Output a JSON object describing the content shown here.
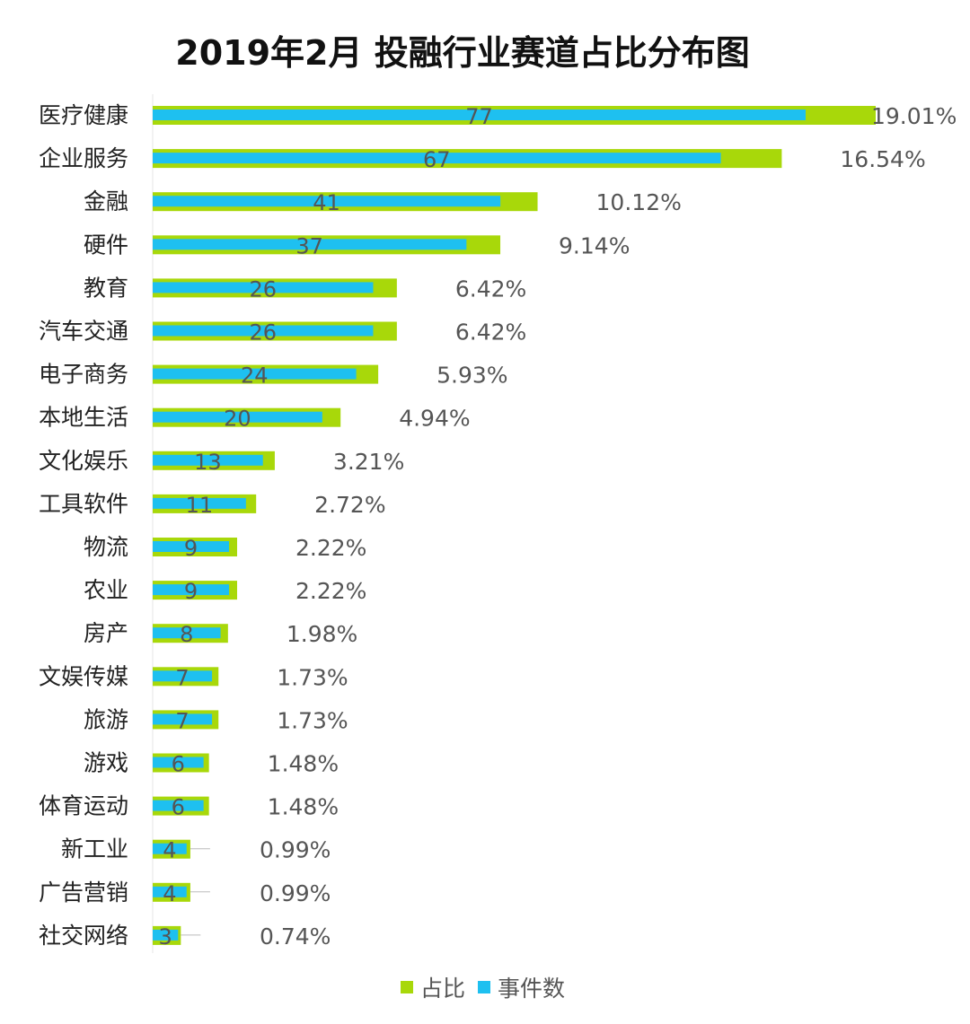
{
  "chart_data": {
    "type": "bar",
    "orientation": "horizontal",
    "title": "2019年2月 投融行业赛道占比分布图",
    "categories": [
      "医疗健康",
      "企业服务",
      "金融",
      "硬件",
      "教育",
      "汽车交通",
      "电子商务",
      "本地生活",
      "文化娱乐",
      "工具软件",
      "物流",
      "农业",
      "房产",
      "文娱传媒",
      "旅游",
      "游戏",
      "体育运动",
      "新工业",
      "广告营销",
      "社交网络"
    ],
    "series": [
      {
        "name": "占比",
        "unit": "%",
        "color": "#a8d80a",
        "values": [
          19.01,
          16.54,
          10.12,
          9.14,
          6.42,
          6.42,
          5.93,
          4.94,
          3.21,
          2.72,
          2.22,
          2.22,
          1.98,
          1.73,
          1.73,
          1.48,
          1.48,
          0.99,
          0.99,
          0.74
        ],
        "labels": [
          "19.01%",
          "16.54%",
          "10.12%",
          "9.14%",
          "6.42%",
          "6.42%",
          "5.93%",
          "4.94%",
          "3.21%",
          "2.72%",
          "2.22%",
          "2.22%",
          "1.98%",
          "1.73%",
          "1.73%",
          "1.48%",
          "1.48%",
          "0.99%",
          "0.99%",
          "0.74%"
        ]
      },
      {
        "name": "事件数",
        "color": "#1ec0f0",
        "values": [
          77,
          67,
          41,
          37,
          26,
          26,
          24,
          20,
          13,
          11,
          9,
          9,
          8,
          7,
          7,
          6,
          6,
          4,
          4,
          3
        ]
      }
    ],
    "legend": "bottom-center",
    "grid": false
  }
}
